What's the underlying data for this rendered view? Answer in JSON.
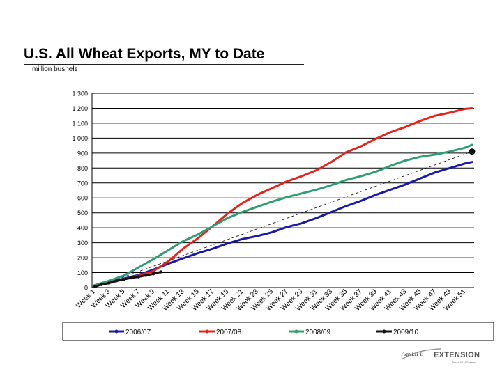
{
  "chart_data": {
    "type": "line",
    "title": "U.S. All Wheat Exports, MY to Date",
    "subtitle": "million bushels",
    "xlabel": "",
    "ylabel": "",
    "ylim": [
      0,
      1300
    ],
    "yticks": [
      0,
      100,
      200,
      300,
      400,
      500,
      600,
      700,
      800,
      900,
      1000,
      1100,
      1200,
      1300
    ],
    "ytick_labels": [
      "0",
      "100",
      "200",
      "300",
      "400",
      "500",
      "600",
      "700",
      "800",
      "900",
      "1 000",
      "1 100",
      "1 200",
      "1 300"
    ],
    "grid": true,
    "legend": "bottom",
    "x_tick_labels": [
      "Week 1",
      "Week 3",
      "Week 5",
      "Week 7",
      "Week 9",
      "Week 11",
      "Week 13",
      "Week 15",
      "Week 17",
      "Week 19",
      "Week 21",
      "Week 23",
      "Week 25",
      "Week 27",
      "Week 29",
      "Week 31",
      "Week 33",
      "Week 35",
      "Week 37",
      "Week 39",
      "Week 41",
      "Week 43",
      "Week 45",
      "Week 47",
      "Week 49",
      "Week 51"
    ],
    "series": [
      {
        "name": "2006/07",
        "color": "#1a1aa8",
        "x": [
          1,
          3,
          5,
          7,
          9,
          11,
          13,
          15,
          17,
          19,
          21,
          23,
          25,
          27,
          29,
          31,
          33,
          35,
          37,
          39,
          41,
          43,
          45,
          47,
          49,
          51,
          52
        ],
        "y": [
          10,
          35,
          60,
          85,
          120,
          160,
          195,
          230,
          260,
          295,
          325,
          345,
          370,
          405,
          430,
          465,
          505,
          545,
          580,
          620,
          655,
          690,
          730,
          770,
          800,
          830,
          840
        ]
      },
      {
        "name": "2007/08",
        "color": "#e8231e",
        "x": [
          1,
          3,
          5,
          7,
          9,
          11,
          13,
          15,
          17,
          19,
          21,
          23,
          25,
          27,
          29,
          31,
          33,
          35,
          37,
          39,
          41,
          43,
          45,
          47,
          49,
          51,
          52
        ],
        "y": [
          10,
          30,
          55,
          80,
          110,
          175,
          260,
          330,
          410,
          495,
          565,
          620,
          665,
          710,
          745,
          785,
          840,
          905,
          945,
          995,
          1040,
          1075,
          1115,
          1150,
          1170,
          1195,
          1200
        ]
      },
      {
        "name": "2008/09",
        "color": "#2e9e72",
        "x": [
          1,
          3,
          5,
          7,
          9,
          11,
          13,
          15,
          17,
          19,
          21,
          23,
          25,
          27,
          29,
          31,
          33,
          35,
          37,
          39,
          41,
          43,
          45,
          47,
          49,
          51,
          52
        ],
        "y": [
          15,
          45,
          80,
          135,
          190,
          250,
          310,
          355,
          410,
          465,
          505,
          540,
          575,
          605,
          630,
          655,
          685,
          720,
          745,
          775,
          815,
          850,
          875,
          890,
          910,
          935,
          955
        ]
      },
      {
        "name": "2009/10",
        "color": "#111111",
        "x": [
          1,
          2,
          3,
          4,
          5,
          6,
          7,
          8,
          9,
          10
        ],
        "y": [
          5,
          20,
          30,
          45,
          55,
          65,
          72,
          82,
          92,
          105
        ]
      }
    ],
    "trendline": {
      "style": "dashed",
      "x": [
        1,
        52
      ],
      "y": [
        0,
        910
      ]
    }
  },
  "logo": {
    "brand": "AgriLIFE",
    "word": "EXTENSION",
    "tagline": "Texas A&M System"
  }
}
